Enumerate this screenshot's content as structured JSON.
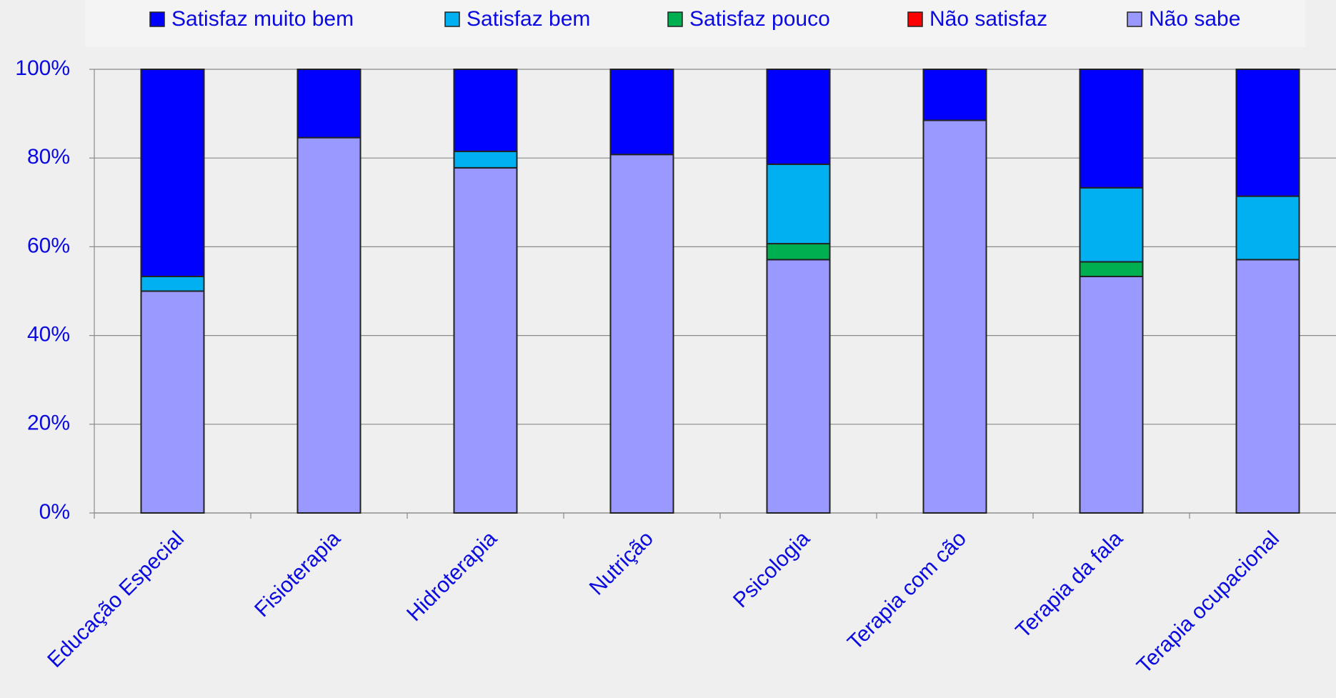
{
  "chart_data": {
    "type": "stacked_bar",
    "categories": [
      "Educação Especial",
      "Fisioterapia",
      "Hidroterapia",
      "Nutrição",
      "Psicologia",
      "Terapia com cão",
      "Terapia da fala",
      "Terapia ocupacional"
    ],
    "series": [
      {
        "name": "Satisfaz muito bem",
        "color": "#0000ff",
        "values": [
          46.7,
          15.4,
          18.5,
          19.2,
          21.4,
          11.5,
          26.7,
          28.6
        ]
      },
      {
        "name": "Satisfaz bem",
        "color": "#00b0f0",
        "values": [
          3.3,
          0,
          3.7,
          0,
          17.9,
          0,
          16.7,
          14.3
        ]
      },
      {
        "name": "Satisfaz pouco",
        "color": "#00b050",
        "values": [
          0,
          0,
          0,
          0,
          3.6,
          0,
          3.3,
          0
        ]
      },
      {
        "name": "Não satisfaz",
        "color": "#ff0000",
        "values": [
          0,
          0,
          0,
          0,
          0,
          0,
          0,
          0
        ]
      },
      {
        "name": "Não sabe",
        "color": "#9999ff",
        "values": [
          50,
          84.6,
          77.8,
          80.8,
          57.1,
          88.5,
          53.3,
          57.1
        ]
      }
    ],
    "ylim": [
      0,
      100
    ],
    "yticks": [
      {
        "value": 0,
        "label": "0%"
      },
      {
        "value": 20,
        "label": "20%"
      },
      {
        "value": 40,
        "label": "40%"
      },
      {
        "value": 60,
        "label": "60%"
      },
      {
        "value": 80,
        "label": "80%"
      },
      {
        "value": 100,
        "label": "100%"
      }
    ],
    "grid": true,
    "legend": "top"
  }
}
